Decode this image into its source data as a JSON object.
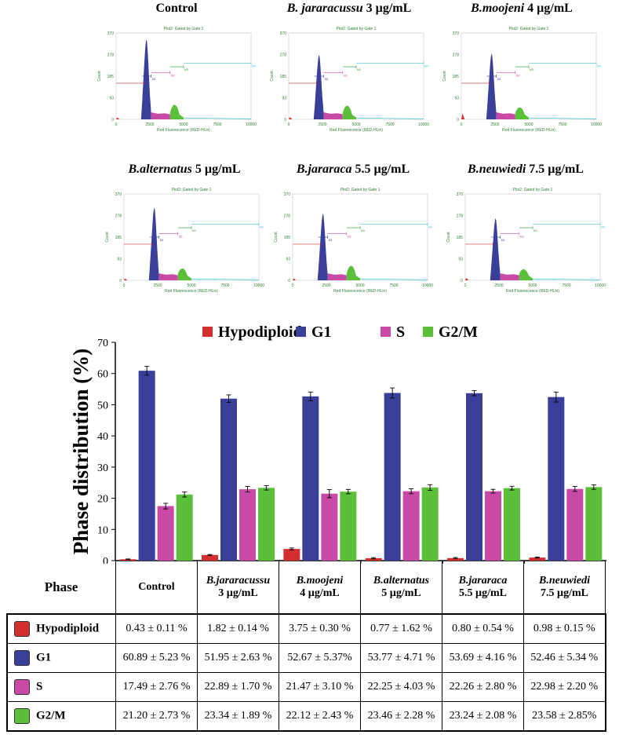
{
  "colors": {
    "Hypodiploid": "#d32f2f",
    "G1": "#3a3f9a",
    "S": "#c84aa6",
    "G2/M": "#5cbf3a"
  },
  "histograms": [
    {
      "title_species": "",
      "title_conc": "Control",
      "italic": false
    },
    {
      "title_species": "B. jararacussu",
      "title_conc": "3 µg/mL",
      "italic": true
    },
    {
      "title_species": "B.moojeni",
      "title_conc": "4 µg/mL",
      "italic": true
    },
    {
      "title_species": "B.alternatus",
      "title_conc": "5 µg/mL",
      "italic": true
    },
    {
      "title_species": "B.jararaca",
      "title_conc": "5.5 µg/mL",
      "italic": true
    },
    {
      "title_species": "B.neuwiedi",
      "title_conc": "7.5 µg/mL",
      "italic": true
    }
  ],
  "hist_common": {
    "plot_title": "Plot2: Gated by Gate 1",
    "ylabel": "Count",
    "xlabel": "Red Fluorescence (RED-HLin)",
    "yticks": [
      "370",
      "278",
      "185",
      "93",
      "0"
    ],
    "xticks": [
      "0",
      "2500",
      "5000",
      "7500",
      "10000"
    ],
    "gate_labels": [
      "M1",
      "M2",
      "M3",
      "M4"
    ]
  },
  "chart_data": {
    "type": "bar",
    "ylabel": "Phase distribution (%)",
    "ylim": [
      0,
      70
    ],
    "yticks": [
      0,
      10,
      20,
      30,
      40,
      50,
      60,
      70
    ],
    "legend": [
      "Hypodiploid",
      "G1",
      "S",
      "G2/M"
    ],
    "categories": [
      "Control",
      "B.jararacussu 3 µg/mL",
      "B.moojeni 4 µg/mL",
      "B.alternatus 5 µg/mL",
      "B.jararaca 5.5 µg/mL",
      "B.neuwiedi 7.5 µg/mL"
    ],
    "series": [
      {
        "name": "Hypodiploid",
        "values": [
          0.43,
          1.82,
          3.75,
          0.77,
          0.8,
          0.98
        ]
      },
      {
        "name": "G1",
        "values": [
          60.89,
          51.95,
          52.67,
          53.77,
          53.69,
          52.46
        ]
      },
      {
        "name": "S",
        "values": [
          17.49,
          22.89,
          21.47,
          22.25,
          22.26,
          22.98
        ]
      },
      {
        "name": "G2/M",
        "values": [
          21.2,
          23.34,
          22.12,
          23.46,
          23.24,
          23.58
        ]
      }
    ],
    "errors": [
      [
        0.11,
        0.14,
        0.3,
        0.2,
        0.2,
        0.15
      ],
      [
        1.4,
        1.2,
        1.4,
        1.6,
        0.8,
        1.6
      ],
      [
        0.9,
        0.9,
        1.3,
        0.8,
        0.6,
        0.8
      ],
      [
        0.8,
        0.7,
        0.7,
        0.9,
        0.6,
        0.7
      ]
    ]
  },
  "table": {
    "phase_label": "Phase",
    "headers": [
      {
        "line1": "Control",
        "line2": "",
        "italic": false
      },
      {
        "line1": "B.jararacussu",
        "line2": "3 µg/mL",
        "italic": true
      },
      {
        "line1": "B.moojeni",
        "line2": "4 µg/mL",
        "italic": true
      },
      {
        "line1": "B.alternatus",
        "line2": "5 µg/mL",
        "italic": true
      },
      {
        "line1": "B.jararaca",
        "line2": "5.5 µg/mL",
        "italic": true
      },
      {
        "line1": "B.neuwiedi",
        "line2": "7.5 µg/mL",
        "italic": true
      }
    ],
    "rows": [
      {
        "label": "Hypodiploid",
        "cells": [
          "0.43 ± 0.11 %",
          "1.82 ± 0.14 %",
          "3.75 ± 0.30 %",
          "0.77 ± 1.62 %",
          "0.80 ± 0.54 %",
          "0.98 ± 0.15 %"
        ]
      },
      {
        "label": "G1",
        "cells": [
          "60.89 ± 5.23 %",
          "51.95 ± 2.63 %",
          "52.67 ± 5.37%",
          "53.77 ± 4.71 %",
          "53.69 ± 4.16 %",
          "52.46 ± 5.34 %"
        ]
      },
      {
        "label": "S",
        "cells": [
          "17.49 ± 2.76 %",
          "22.89 ± 1.70 %",
          "21.47 ± 3.10 %",
          "22.25 ± 4.03 %",
          "22.26 ± 2.80 %",
          "22.98 ± 2.20 %"
        ]
      },
      {
        "label": "G2/M",
        "cells": [
          "21.20 ± 2.73 %",
          "23.34 ± 1.89 %",
          "22.12 ± 2.43 %",
          "23.46 ± 2.28 %",
          "23.24 ± 2.08 %",
          "23.58 ± 2.85%"
        ]
      }
    ]
  }
}
